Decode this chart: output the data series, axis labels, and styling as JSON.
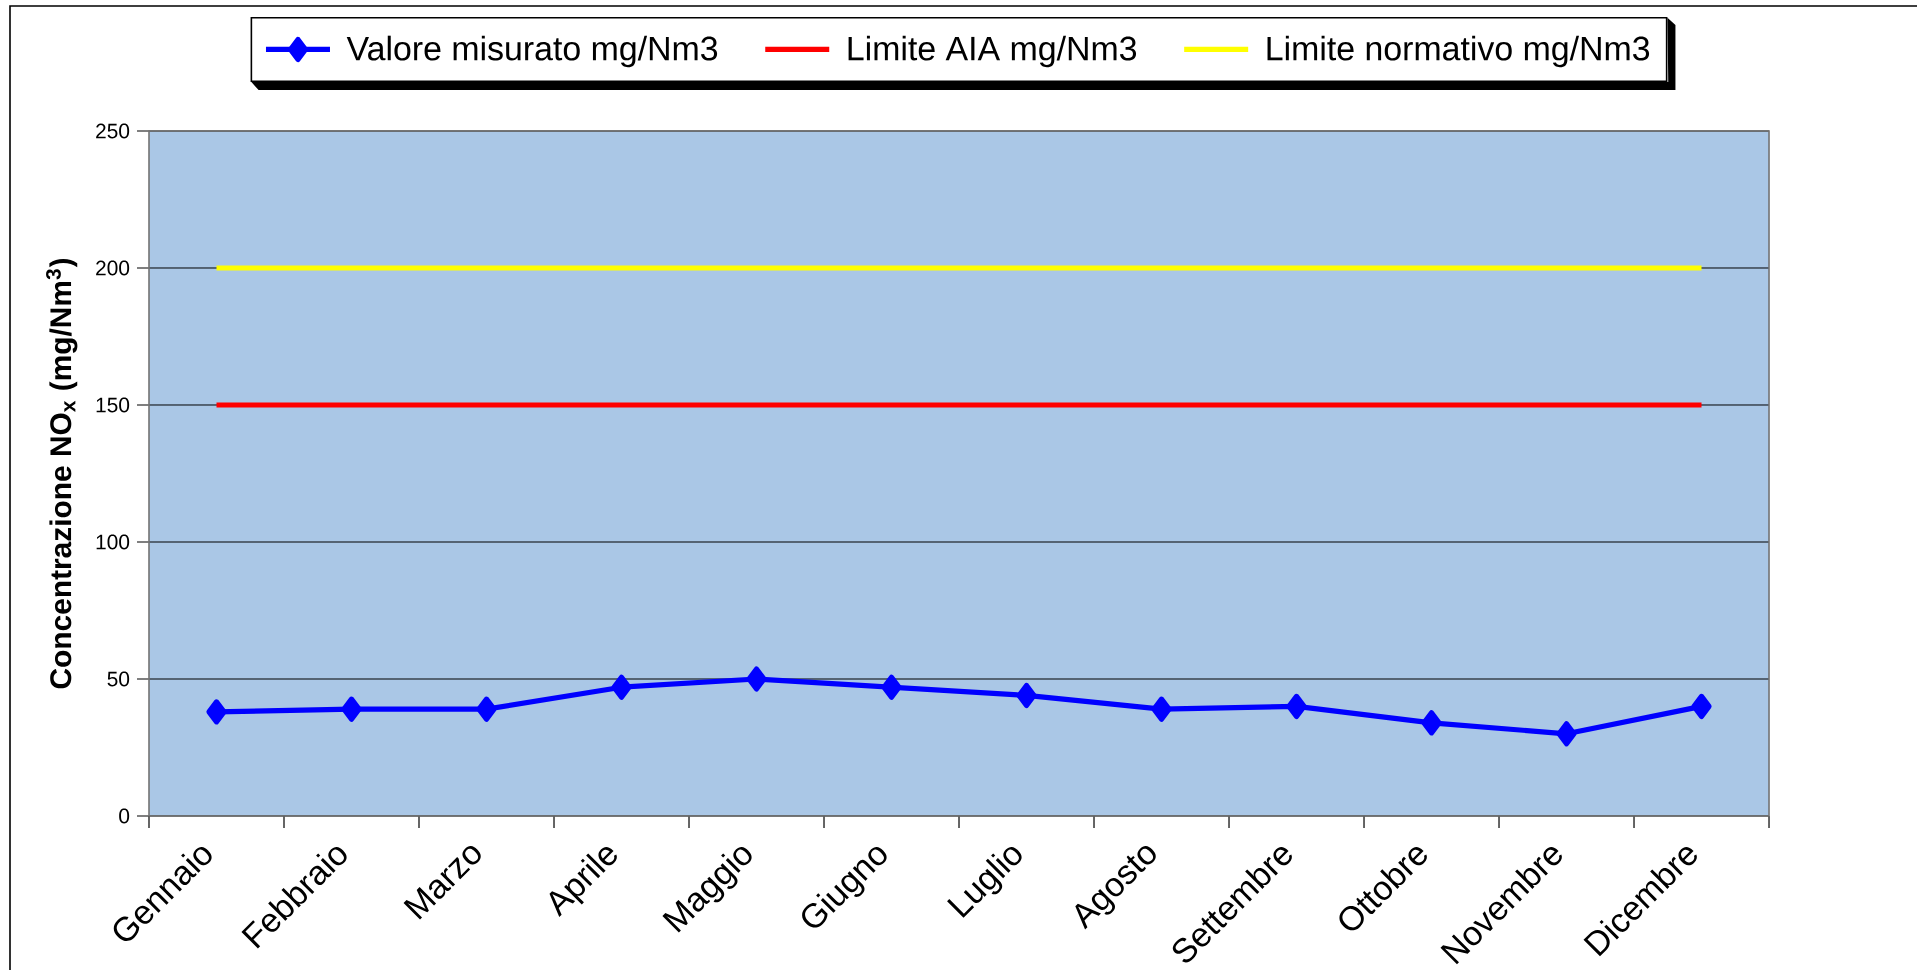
{
  "chart_data": {
    "type": "line",
    "ylabel": "Concentrazione NO$_{x}$ (mg/Nm$^{3}$)",
    "categories": [
      "Gennaio",
      "Febbraio",
      "Marzo",
      "Aprile",
      "Maggio",
      "Giugno",
      "Luglio",
      "Agosto",
      "Settembre",
      "Ottobre",
      "Novembre",
      "Dicembre"
    ],
    "series": [
      {
        "name": "Valore misurato mg/Nm3",
        "color": "#0000ff",
        "marker": "diamond",
        "values": [
          38,
          39,
          39,
          47,
          50,
          47,
          44,
          39,
          40,
          34,
          30,
          40
        ]
      },
      {
        "name": "Limite AIA mg/Nm3",
        "color": "#ff0000",
        "values": [
          150,
          150,
          150,
          150,
          150,
          150,
          150,
          150,
          150,
          150,
          150,
          150
        ]
      },
      {
        "name": "Limite normativo mg/Nm3",
        "color": "#ffff00",
        "values": [
          200,
          200,
          200,
          200,
          200,
          200,
          200,
          200,
          200,
          200,
          200,
          200
        ]
      }
    ],
    "ylim": [
      0,
      250
    ],
    "yticks": [
      0,
      50,
      100,
      150,
      200,
      250
    ],
    "grid": "y",
    "legend": "top"
  }
}
